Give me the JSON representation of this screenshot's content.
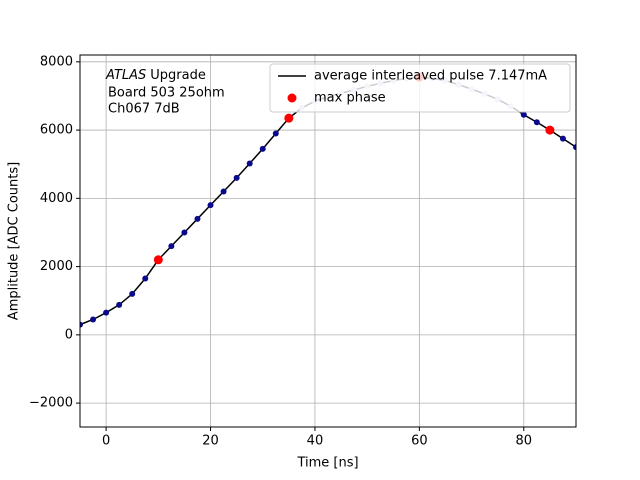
{
  "chart_data": {
    "type": "scatter",
    "xlabel": "Time [ns]",
    "ylabel": "Amplitude [ADC Counts]",
    "annotation": [
      "ATLAS",
      "Upgrade",
      "Board 503 25ohm",
      "Ch067 7dB"
    ],
    "xlim": [
      -5,
      90
    ],
    "ylim": [
      -2700,
      8200
    ],
    "xticks": [
      0,
      20,
      40,
      60,
      80
    ],
    "yticks": [
      {
        "value": -2000,
        "label": "−2000"
      },
      0,
      2000,
      4000,
      6000,
      8000
    ],
    "grid": true,
    "legend": "upper right",
    "series": [
      {
        "name": "average interleaved pulse 7.147mA",
        "color": "#000000",
        "x": [
          -5,
          -2.5,
          0,
          2.5,
          5,
          7.5,
          10,
          12.5,
          15,
          17.5,
          20,
          22.5,
          25,
          27.5,
          30,
          32.5,
          35,
          37.5,
          40,
          42.5,
          45,
          47.5,
          50,
          52.5,
          55,
          57.5,
          60,
          62.5,
          65,
          67.5,
          70,
          72.5,
          75,
          77.5,
          80,
          82.5,
          85,
          87.5,
          90
        ],
        "values": [
          300,
          450,
          650,
          880,
          1200,
          1650,
          2200,
          2600,
          3000,
          3400,
          3800,
          4200,
          4600,
          5020,
          5450,
          5900,
          6350,
          6650,
          6850,
          6980,
          7080,
          7180,
          7280,
          7370,
          7450,
          7510,
          7550,
          7520,
          7450,
          7330,
          7200,
          7060,
          6900,
          6700,
          6450,
          6230,
          6000,
          5750,
          5500
        ]
      },
      {
        "name": "max phase",
        "color": "#ff0000",
        "x": [
          10,
          35,
          60,
          85
        ],
        "values": [
          2200,
          6350,
          7550,
          6000
        ]
      }
    ],
    "samples": [
      {
        "color": "#0a0a8c",
        "x": [
          -5,
          -2.5,
          0,
          2.5,
          5,
          7.5,
          10,
          12.5,
          15,
          17.5,
          20,
          22.5,
          25,
          27.5,
          30,
          32.5,
          35,
          80,
          82.5,
          85,
          87.5,
          90
        ],
        "values": [
          300,
          450,
          650,
          880,
          1200,
          1650,
          2200,
          2600,
          3000,
          3400,
          3800,
          4200,
          4600,
          5020,
          5450,
          5900,
          6350,
          6450,
          6230,
          6000,
          5750,
          5500
        ]
      },
      {
        "color": "#c9c9ee",
        "x": [
          37.5,
          40,
          42.5,
          45,
          47.5,
          50,
          52.5,
          55,
          57.5,
          60,
          62.5,
          65,
          67.5,
          70,
          72.5,
          75,
          77.5
        ],
        "values": [
          6650,
          6850,
          6980,
          7080,
          7180,
          7280,
          7370,
          7450,
          7510,
          7550,
          7520,
          7450,
          7330,
          7200,
          7060,
          6900,
          6700
        ]
      }
    ]
  }
}
